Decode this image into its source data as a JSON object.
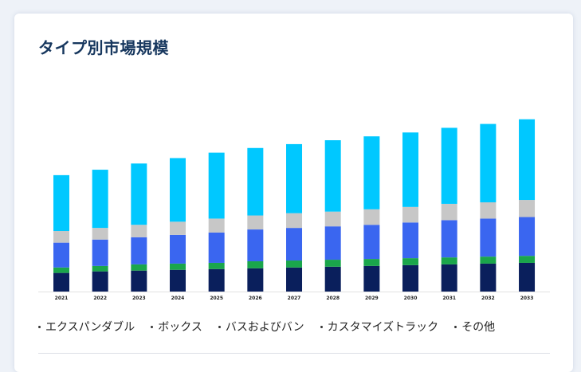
{
  "title": "タイプ別市場規模",
  "chart_data": {
    "type": "bar",
    "stacked": true,
    "categories": [
      "2021",
      "2022",
      "2023",
      "2024",
      "2025",
      "2026",
      "2027",
      "2028",
      "2029",
      "2030",
      "2031",
      "2032",
      "2033"
    ],
    "series": [
      {
        "name": "その他",
        "color": "#0a1f5c",
        "values": [
          24,
          26,
          27,
          28,
          29,
          30,
          31,
          32,
          33,
          34,
          35,
          36,
          37
        ]
      },
      {
        "name": "カスタマイズトラック",
        "color": "#1aa64b",
        "values": [
          7,
          7,
          8,
          8,
          8,
          9,
          9,
          9,
          9,
          9,
          9,
          9,
          9
        ]
      },
      {
        "name": "バスおよびバン",
        "color": "#3a66f0",
        "values": [
          32,
          34,
          35,
          37,
          39,
          41,
          42,
          43,
          44,
          46,
          48,
          49,
          50
        ]
      },
      {
        "name": "ボックス",
        "color": "#c7c7c7",
        "values": [
          15,
          15,
          16,
          17,
          18,
          18,
          19,
          19,
          20,
          20,
          21,
          21,
          22
        ]
      },
      {
        "name": "エクスパンダブル",
        "color": "#00c8ff",
        "values": [
          72,
          75,
          79,
          82,
          85,
          87,
          89,
          92,
          94,
          96,
          98,
          101,
          104
        ]
      }
    ],
    "ylim": [
      0,
      232
    ],
    "grid": false,
    "legend_position": "bottom"
  },
  "legend": [
    {
      "label": "エクスパンダブル"
    },
    {
      "label": "ボックス"
    },
    {
      "label": "バスおよびバン"
    },
    {
      "label": "カスタマイズトラック"
    },
    {
      "label": "その他"
    }
  ]
}
